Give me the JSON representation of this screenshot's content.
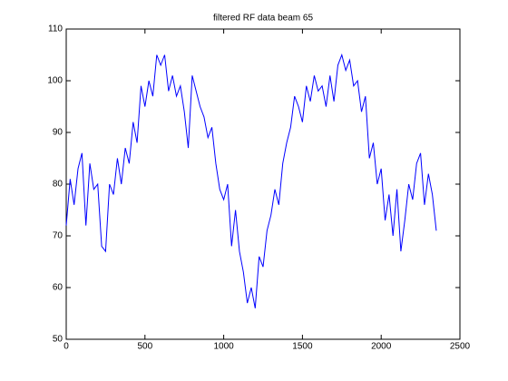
{
  "chart_data": {
    "type": "line",
    "title": "filtered RF data beam 65",
    "x": [
      0,
      25,
      50,
      75,
      100,
      125,
      150,
      175,
      200,
      225,
      250,
      275,
      300,
      325,
      350,
      375,
      400,
      425,
      450,
      475,
      500,
      525,
      550,
      575,
      600,
      625,
      650,
      675,
      700,
      725,
      750,
      775,
      800,
      825,
      850,
      875,
      900,
      925,
      950,
      975,
      1000,
      1025,
      1050,
      1075,
      1100,
      1125,
      1150,
      1175,
      1200,
      1225,
      1250,
      1275,
      1300,
      1325,
      1350,
      1375,
      1400,
      1425,
      1450,
      1475,
      1500,
      1525,
      1550,
      1575,
      1600,
      1625,
      1650,
      1675,
      1700,
      1725,
      1750,
      1775,
      1800,
      1825,
      1850,
      1875,
      1900,
      1925,
      1950,
      1975,
      2000,
      2025,
      2050,
      2075,
      2100,
      2125,
      2150,
      2175,
      2200,
      2225,
      2250,
      2275,
      2300,
      2325,
      2350
    ],
    "series": [
      {
        "color": "#0000ff",
        "values": [
          72,
          81,
          76,
          83,
          86,
          72,
          84,
          79,
          80,
          68,
          67,
          80,
          78,
          85,
          80,
          87,
          84,
          92,
          88,
          99,
          95,
          100,
          97,
          105,
          103,
          105,
          98,
          101,
          97,
          99,
          94,
          87,
          101,
          98,
          95,
          93,
          89,
          91,
          84,
          79,
          77,
          80,
          68,
          75,
          67,
          63,
          57,
          60,
          56,
          66,
          64,
          71,
          74,
          79,
          76,
          84,
          88,
          91,
          97,
          95,
          92,
          99,
          96,
          101,
          98,
          99,
          95,
          101,
          96,
          103,
          105,
          102,
          104,
          99,
          100,
          94,
          97,
          85,
          88,
          80,
          83,
          73,
          78,
          70,
          79,
          67,
          73,
          80,
          77,
          84,
          86,
          76,
          82,
          78,
          71
        ]
      }
    ],
    "xlim": [
      0,
      2500
    ],
    "xticks": [
      0,
      500,
      1000,
      1500,
      2000,
      2500
    ],
    "ylim": [
      50,
      110
    ],
    "yticks": [
      50,
      60,
      70,
      80,
      90,
      100,
      110
    ]
  }
}
